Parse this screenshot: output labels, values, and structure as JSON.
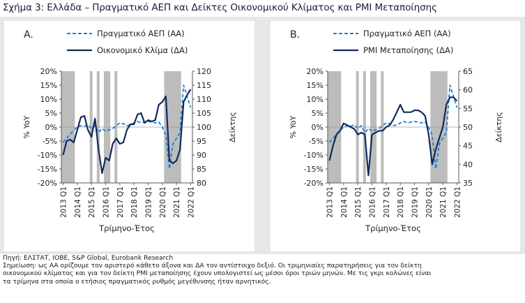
{
  "figure_title": "Σχήμα 3: Ελλάδα – Πραγματικό ΑΕΠ και Δείκτες Οικονομικού Κλίματος και PMI Μεταποίησης",
  "source_line": "Πηγή: ΕΛΣΤΑΤ, ΙΟΒΕ, S&P Global, Eurobank Research",
  "notes": [
    "Σημείωση: ως ΑΑ ορίζουμε τον αριστερό κάθετο άξονα και ΔΑ τον αντίστοιχο δεξιό. Οι τριμηνιαίες παρατηρήσεις για τον δείκτη",
    "οικονομικού κλίματος και για τον δείκτη PMI μεταποίησης έχουν υπολογιστεί ως μέσοι όροι τριών μηνών. Με τις γκρι κολώνες είναι",
    "τα τρίμηνα στα οποία ο ετήσιος πραγματικός ρυθμός μεγέθυνσης ήταν αρνητικός."
  ],
  "colors": {
    "gdp_line": "#1f7fd0",
    "index_line": "#0f2a5c",
    "shade": "#bcbcbc",
    "axis": "#555555"
  },
  "chart_data": [
    {
      "id": "A",
      "type": "line",
      "panel_label": "A.",
      "xlabel": "Τρίμηνο-Έτος",
      "ylabel_left": "% YoY",
      "ylabel_right": "Δείκτης",
      "y_left_range": [
        -20,
        20
      ],
      "y_left_ticks": [
        "20%",
        "15%",
        "10%",
        "5%",
        "0%",
        "-5%",
        "-10%",
        "-15%",
        "-20%"
      ],
      "y_right_range": [
        80,
        120
      ],
      "y_right_ticks": [
        "120",
        "115",
        "110",
        "105",
        "100",
        "95",
        "90",
        "85",
        "80"
      ],
      "x_tick_labels": [
        "2013 Q1",
        "2014 Q1",
        "2015 Q1",
        "2016 Q1",
        "2017 Q1",
        "2018 Q1",
        "2019 Q1",
        "2020 Q1",
        "2021 Q1",
        "2022 Q1"
      ],
      "legend": {
        "placement": "top",
        "gdp": "Πραγματικό ΑΕΠ (ΑΑ)",
        "index": "Οικονομικό Κλίμα (ΔΑ)"
      },
      "negative_quarters": [
        [
          0,
          3
        ],
        [
          8,
          8
        ],
        [
          10,
          10
        ],
        [
          12,
          13
        ],
        [
          15,
          15
        ],
        [
          29,
          33
        ]
      ],
      "series": [
        {
          "key": "gdp",
          "name": "Πραγματικό ΑΕΠ (ΑΑ)",
          "axis": "left",
          "style": "dashed",
          "values": [
            -5.5,
            -4,
            -2.5,
            -1.2,
            0,
            0.5,
            0.3,
            0.8,
            -0.5,
            0.5,
            -2,
            -0.5,
            -1.5,
            -1,
            -0.5,
            0.5,
            1.5,
            1.2,
            0.5,
            0.8,
            1.5,
            2,
            1.5,
            1.8,
            2,
            1.8,
            1.5,
            1.8,
            0,
            -3,
            -15,
            -6,
            -4,
            -2,
            15,
            11,
            7
          ]
        },
        {
          "key": "index",
          "name": "Οικονομικό Κλίμα (ΔΑ)",
          "axis": "right",
          "style": "solid",
          "values": [
            90,
            95,
            95.5,
            94.5,
            99,
            103.5,
            104,
            99,
            96.5,
            103,
            92,
            83.5,
            89,
            88,
            94,
            96,
            94,
            94.5,
            99,
            101,
            101,
            104.5,
            105,
            101.5,
            102.5,
            102,
            102.5,
            108,
            109,
            111,
            88,
            87,
            88,
            92,
            109,
            111.5,
            113.5
          ]
        }
      ]
    },
    {
      "id": "B",
      "type": "line",
      "panel_label": "B.",
      "xlabel": "Τρίμηνο-Έτος",
      "ylabel_left": "% YoY",
      "ylabel_right": "Δείκτης",
      "y_left_range": [
        -20,
        20
      ],
      "y_left_ticks": [
        "20%",
        "15%",
        "10%",
        "5%",
        "0%",
        "-5%",
        "-10%",
        "-15%",
        "-20%"
      ],
      "y_right_range": [
        35,
        65
      ],
      "y_right_ticks": [
        "65",
        "60",
        "55",
        "50",
        "45",
        "40",
        "35"
      ],
      "x_tick_labels": [
        "2013 Q1",
        "2014 Q1",
        "2015 Q1",
        "2016 Q1",
        "2017 Q1",
        "2018 Q1",
        "2019 Q1",
        "2020 Q1",
        "2021 Q1",
        "2022 Q1"
      ],
      "legend": {
        "placement": "top",
        "gdp": "Πραγματικό ΑΕΠ (ΑΑ)",
        "index": "PMI Μεταποίησης (ΔΑ)"
      },
      "negative_quarters": [
        [
          0,
          3
        ],
        [
          8,
          8
        ],
        [
          10,
          10
        ],
        [
          12,
          13
        ],
        [
          15,
          15
        ],
        [
          29,
          33
        ]
      ],
      "series": [
        {
          "key": "gdp",
          "name": "Πραγματικό ΑΕΠ (ΑΑ)",
          "axis": "left",
          "style": "dashed",
          "values": [
            -5.5,
            -4,
            -2.5,
            -1.2,
            0,
            0.5,
            0.3,
            0.8,
            -0.5,
            0.5,
            -2,
            -0.5,
            -1.5,
            -1,
            -0.5,
            0.5,
            1.5,
            1.2,
            0.5,
            0.8,
            1.5,
            2,
            1.5,
            1.8,
            2,
            1.8,
            1.5,
            1.8,
            0,
            -3,
            -15,
            -6,
            -4,
            -2,
            15,
            11,
            7
          ]
        },
        {
          "key": "index",
          "name": "PMI Μεταποίησης (ΔΑ)",
          "axis": "right",
          "style": "solid",
          "values": [
            41,
            45,
            48,
            49,
            51,
            50.5,
            50,
            49.5,
            48,
            48.5,
            48,
            37,
            48,
            48.5,
            49,
            49,
            50,
            50.5,
            52,
            54,
            56,
            54,
            54,
            54,
            54.5,
            54.5,
            54,
            53,
            48,
            40,
            44,
            47,
            50,
            56,
            58,
            58,
            57
          ]
        }
      ]
    }
  ]
}
